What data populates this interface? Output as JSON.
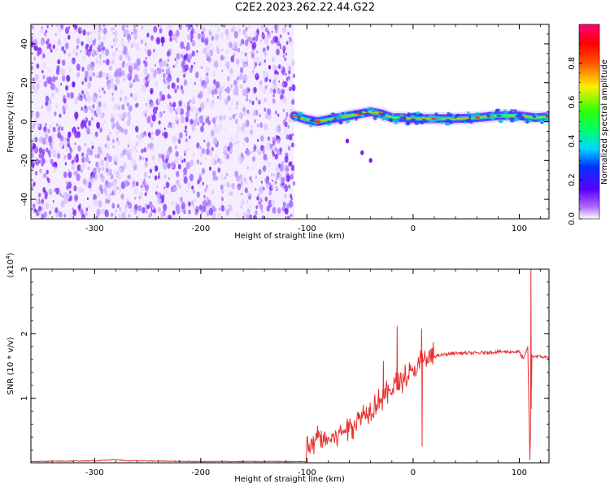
{
  "title": "C2E2.2023.262.22.44.G22",
  "chart_data": [
    {
      "type": "heatmap",
      "xlabel": "Height of straight line (km)",
      "ylabel": "Frequency (Hz)",
      "xlim": [
        -360,
        128
      ],
      "ylim": [
        -50,
        50
      ],
      "xticks": [
        -300,
        -200,
        -100,
        0,
        100
      ],
      "yticks": [
        -40,
        -20,
        0,
        20,
        40
      ],
      "noise_region_x": [
        -360,
        -112
      ],
      "signal_trace": {
        "x": [
          -112,
          -100,
          -90,
          -80,
          -70,
          -60,
          -50,
          -40,
          -30,
          -20,
          -10,
          0,
          20,
          40,
          60,
          80,
          100,
          115,
          128
        ],
        "freq": [
          3,
          1,
          0,
          1,
          2,
          3,
          4,
          5,
          4,
          2,
          2,
          1.5,
          1.5,
          1.5,
          2,
          3,
          3,
          2,
          2.5
        ]
      },
      "outliers": [
        {
          "x": -62,
          "freq": -10
        },
        {
          "x": -48,
          "freq": -16
        },
        {
          "x": -40,
          "freq": -20
        }
      ],
      "colorbar": {
        "label": "Normalized spectral amplitude",
        "ticks": [
          0.0,
          0.2,
          0.4,
          0.6,
          0.8
        ],
        "range": [
          0,
          1
        ]
      },
      "grid": false
    },
    {
      "type": "line",
      "xlabel": "Height of straight line (km)",
      "ylabel": "SNR (10 * v/v)",
      "yscale_label": "(x10",
      "yscale_exp": "4",
      "yscale_close": ")",
      "xlim": [
        -360,
        128
      ],
      "ylim": [
        0,
        3
      ],
      "xticks": [
        -300,
        -200,
        -100,
        0,
        100
      ],
      "yticks": [
        1,
        2,
        3
      ],
      "series": [
        {
          "color": "#e8302f",
          "x": [
            -360,
            -300,
            -280,
            -270,
            -260,
            -200,
            -120,
            -101,
            -100,
            -97,
            -90,
            -80,
            -70,
            -60,
            -50,
            -40,
            -30,
            -20,
            -10,
            0,
            10,
            20,
            30,
            40,
            60,
            80,
            100,
            104,
            108,
            110,
            112,
            118,
            128
          ],
          "y": [
            0.02,
            0.03,
            0.05,
            0.03,
            0.03,
            0.02,
            0.02,
            0.02,
            0.3,
            0.22,
            0.4,
            0.35,
            0.45,
            0.55,
            0.7,
            0.85,
            1.0,
            1.15,
            1.3,
            1.4,
            1.6,
            1.65,
            1.68,
            1.7,
            1.7,
            1.72,
            1.72,
            1.6,
            1.8,
            0.05,
            1.65,
            1.65,
            1.63
          ]
        }
      ],
      "spikes": [
        {
          "x": -28,
          "y": 1.58
        },
        {
          "x": -15,
          "y": 2.12
        },
        {
          "x": 8,
          "y": 2.08
        },
        {
          "x": 8.5,
          "y": 0.25
        },
        {
          "x": 111,
          "y": 3.0
        }
      ],
      "grid": false
    }
  ]
}
